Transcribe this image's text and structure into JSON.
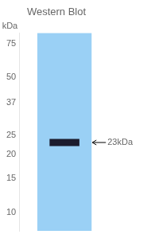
{
  "chart_data": {
    "type": "blot",
    "title": "Western Blot",
    "ylabel": "kDa",
    "categories": [
      null
    ],
    "values": [
      23
    ],
    "value_labels": [
      "23kDa"
    ],
    "data_labels": true,
    "color": "#1c1c2e",
    "marker": "band",
    "log": "y",
    "ylim": [
      8,
      85
    ],
    "yticks": [
      75,
      50,
      37,
      25,
      20,
      15,
      10
    ],
    "grid": false,
    "tick_labels": "y"
  }
}
